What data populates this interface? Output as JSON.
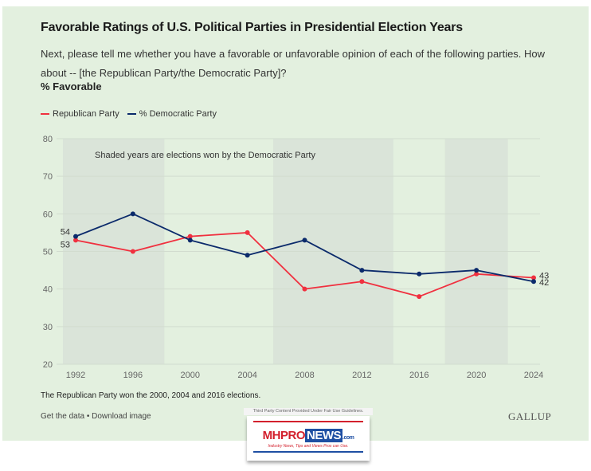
{
  "header": {
    "title": "Favorable Ratings of U.S. Political Parties in Presidential Election Years",
    "subtitle": "Next, please tell me whether you have a favorable or unfavorable opinion of each of the following parties. How about -- [the Republican Party/the Democratic Party]?",
    "unit_label": "% Favorable"
  },
  "legend": [
    {
      "label": "Republican Party",
      "color": "#f0303f"
    },
    {
      "label": "% Democratic Party",
      "color": "#0b2a6b"
    }
  ],
  "chart_data": {
    "type": "line",
    "title": "Favorable Ratings of U.S. Political Parties in Presidential Election Years",
    "xlabel": "",
    "ylabel": "% Favorable",
    "x": [
      1992,
      1996,
      2000,
      2004,
      2008,
      2012,
      2016,
      2020,
      2024
    ],
    "x_tick_labels": [
      "1992",
      "1996",
      "2000",
      "2004",
      "2008",
      "2012",
      "2016",
      "2020",
      "2024"
    ],
    "y_ticks": [
      20,
      30,
      40,
      50,
      60,
      70,
      80
    ],
    "ylim": [
      20,
      80
    ],
    "grid": "horizontal",
    "legend_position": "top-left",
    "series": [
      {
        "name": "Republican Party",
        "color": "#f0303f",
        "values": [
          53,
          50,
          54,
          55,
          40,
          42,
          38,
          44,
          43
        ]
      },
      {
        "name": "% Democratic Party",
        "color": "#0b2a6b",
        "values": [
          54,
          60,
          53,
          49,
          53,
          45,
          44,
          45,
          42
        ]
      }
    ],
    "shaded_years": [
      1992,
      1996,
      2008,
      2012,
      2020
    ],
    "annotation": "Shaded years are elections won by the Democratic Party",
    "end_labels": {
      "start": {
        "Republican Party": "53",
        "% Democratic Party": "54"
      },
      "end": {
        "Republican Party": "43",
        "% Democratic Party": "42"
      }
    }
  },
  "footer": {
    "note": "The Republican Party won the 2000, 2004 and 2016 elections.",
    "get_data": "Get the data",
    "separator": "•",
    "download": "Download image",
    "brand": "GALLUP"
  },
  "badge": {
    "caption": "Third Party Content Provided Under Fair Use Guidelines.",
    "logo_mh": "MHPRO",
    "logo_news": "NEWS",
    "logo_com": ".com",
    "tagline": "Industry News, Tips and Views Pros can Use."
  },
  "colors": {
    "background": "#e3f0df",
    "shade": "#dae4d9",
    "grid": "#d2dccf"
  }
}
